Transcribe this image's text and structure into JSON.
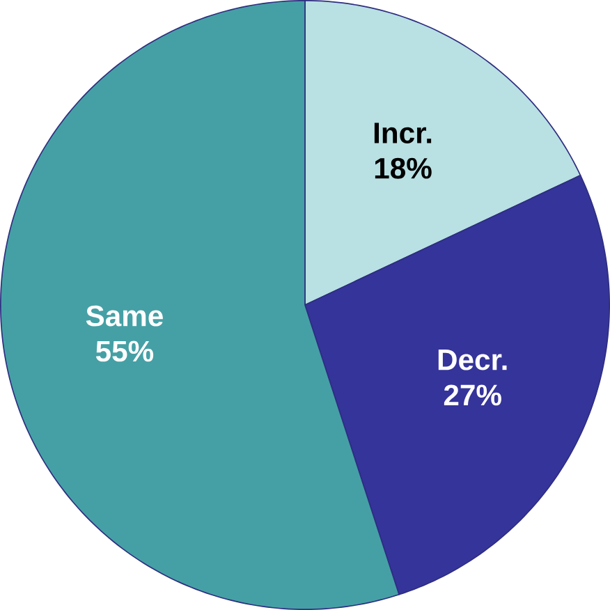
{
  "chart_data": {
    "type": "pie",
    "categories": [
      "Incr.",
      "Decr.",
      "Same"
    ],
    "values": [
      18,
      27,
      55
    ],
    "value_labels": [
      "18%",
      "27%",
      "55%"
    ],
    "colors": [
      "#b9e0e3",
      "#35349a",
      "#45a0a5"
    ]
  }
}
